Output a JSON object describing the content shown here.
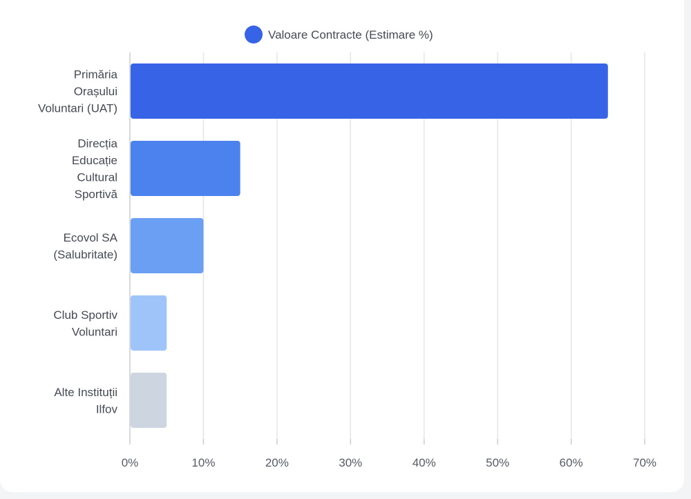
{
  "chart_data": {
    "type": "bar",
    "orientation": "horizontal",
    "categories": [
      [
        "Primăria",
        "Orașului",
        "Voluntari (UAT)"
      ],
      [
        "Direcția",
        "Educație",
        "Cultural",
        "Sportivă"
      ],
      [
        "Ecovol SA",
        "(Salubritate)"
      ],
      [
        "Club Sportiv",
        "Voluntari"
      ],
      [
        "Alte Instituții",
        "Ilfov"
      ]
    ],
    "series": [
      {
        "name": "Valoare Contracte (Estimare %)",
        "values": [
          65,
          15,
          10,
          5,
          5
        ],
        "colors": [
          "#3763e6",
          "#4c82ee",
          "#6b9ff3",
          "#9fc4f9",
          "#cdd5e0"
        ]
      }
    ],
    "xlim": [
      0,
      70
    ],
    "xticks": [
      "0%",
      "10%",
      "20%",
      "30%",
      "40%",
      "50%",
      "60%",
      "70%"
    ],
    "grid": true,
    "legend_position": "top",
    "legend_color": "#3763e6"
  }
}
